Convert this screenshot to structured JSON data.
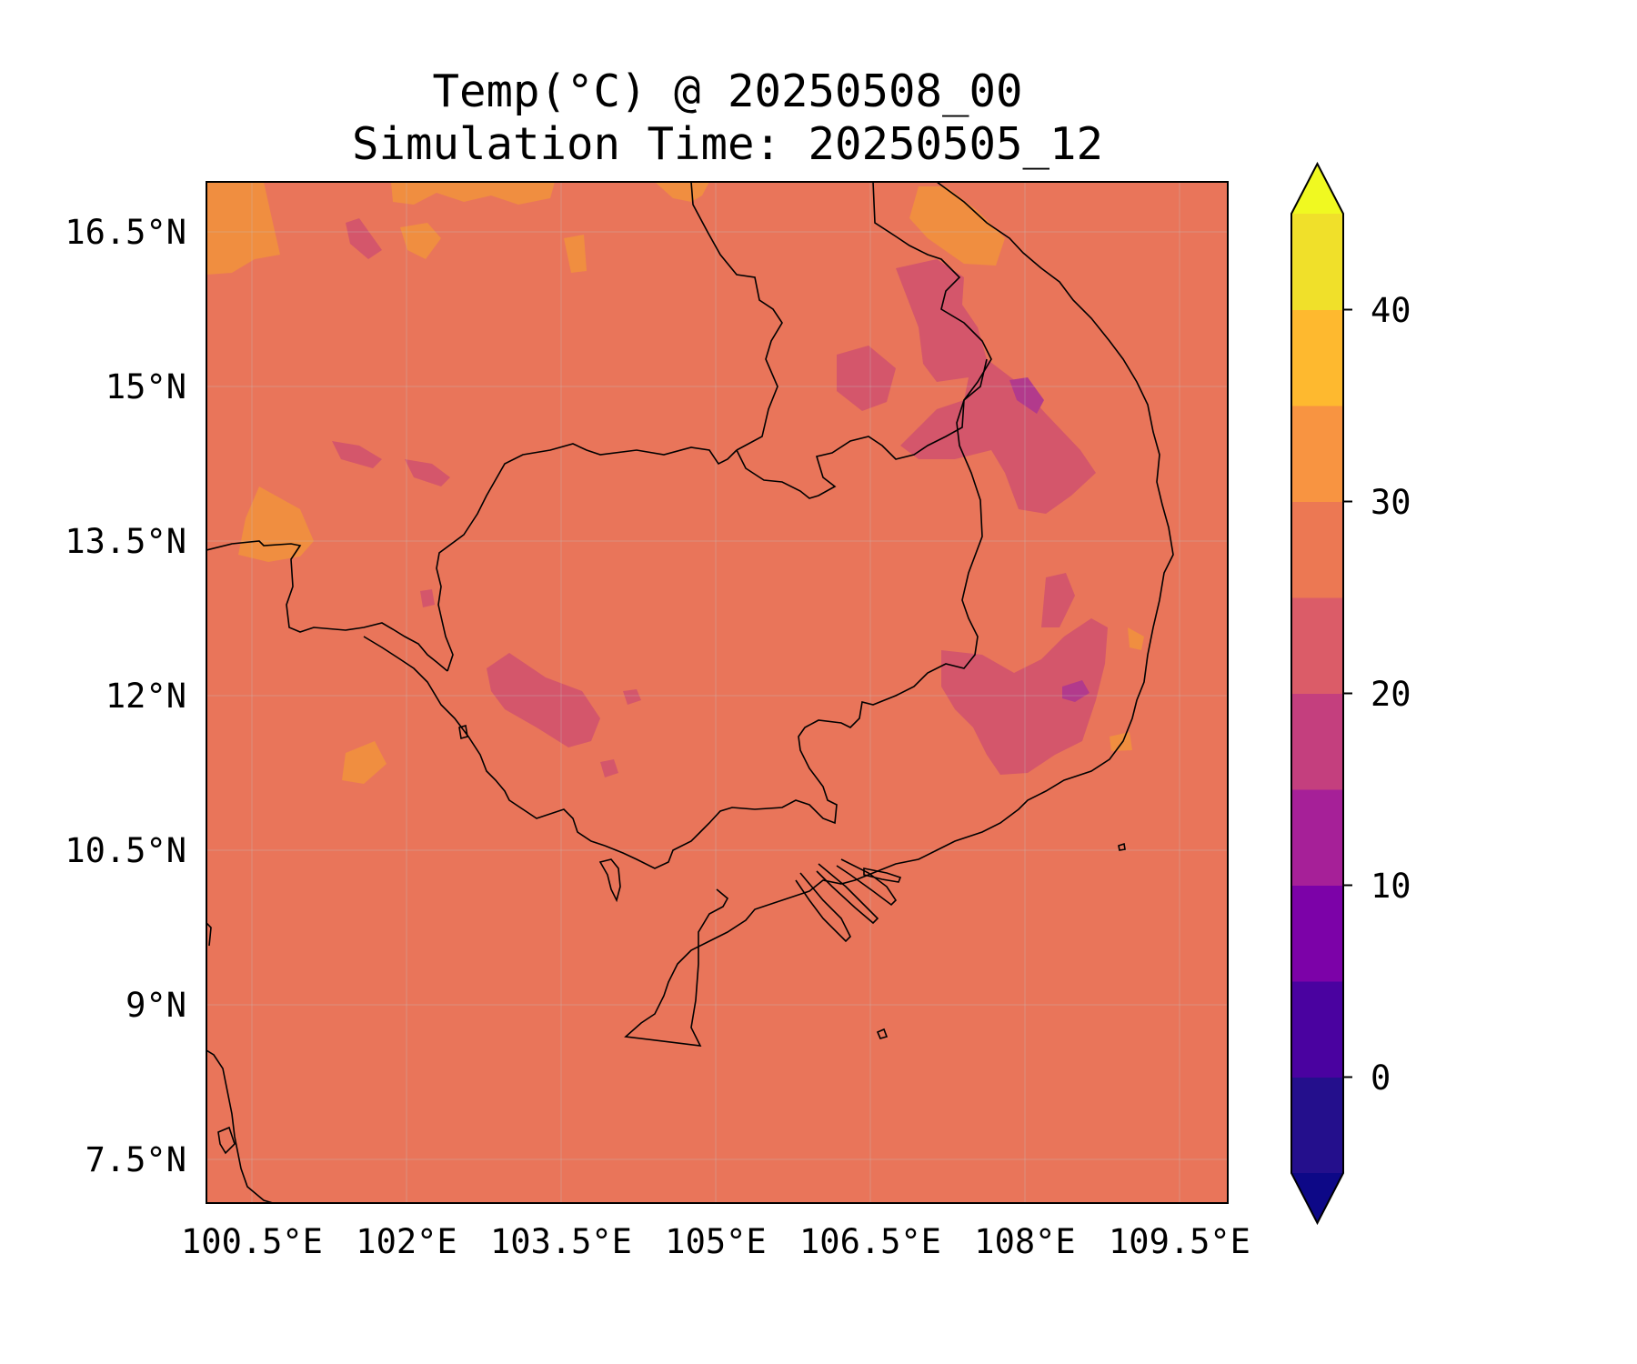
{
  "title": "Temp(°C) @ 20250508_00",
  "subtitle": "Simulation Time: 20250505_12",
  "lon_ticks": [
    "100.5°E",
    "102°E",
    "103.5°E",
    "105°E",
    "106.5°E",
    "108°E",
    "109.5°E"
  ],
  "lat_ticks": [
    "16.5°N",
    "15°N",
    "13.5°N",
    "12°N",
    "10.5°N",
    "9°N",
    "7.5°N"
  ],
  "colorbar": {
    "tick_labels": [
      "40",
      "30",
      "20",
      "10",
      "0"
    ],
    "levels": [
      -5,
      0,
      5,
      10,
      15,
      20,
      25,
      30,
      35,
      40,
      45
    ],
    "colors": [
      "#240f8c",
      "#4a02a0",
      "#7c02a8",
      "#a62098",
      "#c43f7e",
      "#db5c68",
      "#ec7853",
      "#f89441",
      "#feb92f",
      "#f0e02a"
    ],
    "under_color": "#0d0887",
    "over_color": "#f0f921",
    "colormap": "plasma",
    "extend": "both"
  },
  "map": {
    "background_level": "25-30",
    "background_color": "#e9755a",
    "region": "Cambodia, southern Laos, southern Vietnam, eastern Thailand"
  }
}
